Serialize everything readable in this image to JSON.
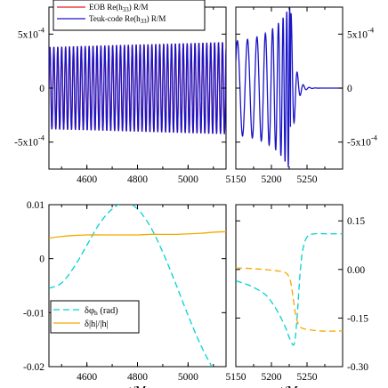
{
  "colors": {
    "eob": "#e0201b",
    "teuk": "#1a14c8",
    "dphi": "#00d2d2",
    "damp": "#f5a800",
    "axis": "#000000"
  },
  "chart_data": [
    {
      "type": "line",
      "xlim": [
        4450,
        5150
      ],
      "ylim": [
        -0.00075,
        0.00075
      ],
      "yticks": [
        {
          "v": 0.0005,
          "label": "5x10",
          "exp": "-4"
        },
        {
          "v": 0,
          "label": "0"
        },
        {
          "v": -0.0005,
          "label": "-5x10",
          "exp": "-4"
        }
      ],
      "xticks": [
        4600,
        4800,
        5000
      ],
      "xlabel": "",
      "legend_position": "top-left",
      "series": [
        {
          "name": "EOB Re(h33) R/M",
          "label_main": "EOB Re(h",
          "label_sub": "33",
          "label_end": ") R/M",
          "color_key": "eob",
          "amplitude": 0.00038,
          "period_M": 15.5
        },
        {
          "name": "Teuk-code Re(h33) R/M",
          "label_main": "Teuk-code Re(h",
          "label_sub": "33",
          "label_end": ") R/M",
          "color_key": "teuk",
          "amplitude": 0.00038,
          "period_M": 15.5
        }
      ]
    },
    {
      "type": "line",
      "xlim": [
        5150,
        5300
      ],
      "ylim": [
        -0.00075,
        0.00075
      ],
      "yticks_right": [
        {
          "v": 0.0005,
          "label": "5x10",
          "exp": "-4"
        },
        {
          "v": 0,
          "label": "0"
        },
        {
          "v": -0.0005,
          "label": "-5x10",
          "exp": "-4"
        }
      ],
      "xticks": [
        5150,
        5200,
        5250
      ],
      "xlabel": "",
      "series": [
        {
          "name": "Teuk-code Re(h33) R/M",
          "color_key": "teuk",
          "peak_time": 5227,
          "peak_amplitude": 0.00078,
          "ringdown_end": 5250
        }
      ]
    },
    {
      "type": "line",
      "xlim": [
        4450,
        5150
      ],
      "ylim": [
        -0.02,
        0.01
      ],
      "yticks": [
        {
          "v": 0.01,
          "label": "0.01"
        },
        {
          "v": 0,
          "label": "0"
        },
        {
          "v": -0.01,
          "label": "-0.01"
        },
        {
          "v": -0.02,
          "label": "-0.02"
        }
      ],
      "xticks": [
        4600,
        4800,
        5000
      ],
      "xlabel": "t/M",
      "legend_position": "bottom-left",
      "series": [
        {
          "name": "δφh (rad)",
          "label_main": "δφ",
          "label_sub": "h",
          "label_end": " (rad)",
          "color_key": "dphi",
          "dash": true,
          "x": [
            4450,
            4500,
            4550,
            4600,
            4650,
            4700,
            4750,
            4800,
            4850,
            4900,
            4950,
            5000,
            5050,
            5100,
            5150
          ],
          "y": [
            -0.0055,
            -0.0045,
            -0.0015,
            0.0025,
            0.0065,
            0.0092,
            0.0104,
            0.0092,
            0.006,
            0.0012,
            -0.0045,
            -0.0105,
            -0.016,
            -0.0205,
            -0.0245
          ]
        },
        {
          "name": "δ|h|/|h|",
          "label_main": "δ|h|/|h|",
          "color_key": "damp",
          "dash": false,
          "x": [
            4450,
            4500,
            4550,
            4600,
            4650,
            4700,
            4750,
            4800,
            4850,
            4900,
            4950,
            5000,
            5050,
            5100,
            5150
          ],
          "y": [
            0.0038,
            0.0041,
            0.0043,
            0.0044,
            0.0044,
            0.0044,
            0.0044,
            0.0044,
            0.0045,
            0.0045,
            0.0045,
            0.0046,
            0.0047,
            0.0049,
            0.005
          ]
        }
      ]
    },
    {
      "type": "line",
      "xlim": [
        5150,
        5300
      ],
      "ylim": [
        -0.3,
        0.2
      ],
      "yticks_right": [
        {
          "v": 0.15,
          "label": "0.15"
        },
        {
          "v": 0,
          "label": "0.00"
        },
        {
          "v": -0.15,
          "label": "-0.15"
        },
        {
          "v": -0.3,
          "label": "-0.30"
        }
      ],
      "xticks": [
        5150,
        5200,
        5250
      ],
      "xlabel": "t/M",
      "series": [
        {
          "name": "δφh (rad)",
          "color_key": "dphi",
          "dash": true,
          "x": [
            5150,
            5170,
            5190,
            5200,
            5210,
            5220,
            5226,
            5232,
            5236,
            5240,
            5244,
            5250,
            5260,
            5280,
            5300
          ],
          "y": [
            -0.035,
            -0.05,
            -0.075,
            -0.1,
            -0.135,
            -0.18,
            -0.215,
            -0.23,
            -0.15,
            -0.02,
            0.06,
            0.1,
            0.11,
            0.11,
            0.11
          ]
        },
        {
          "name": "δ|h|/|h|",
          "color_key": "damp",
          "dash": true,
          "x": [
            5150,
            5170,
            5190,
            5210,
            5220,
            5226,
            5230,
            5234,
            5238,
            5242,
            5250,
            5270,
            5300
          ],
          "y": [
            0.005,
            0.003,
            0.0,
            -0.005,
            -0.01,
            -0.03,
            -0.08,
            -0.14,
            -0.17,
            -0.18,
            -0.185,
            -0.19,
            -0.19
          ]
        }
      ]
    }
  ]
}
